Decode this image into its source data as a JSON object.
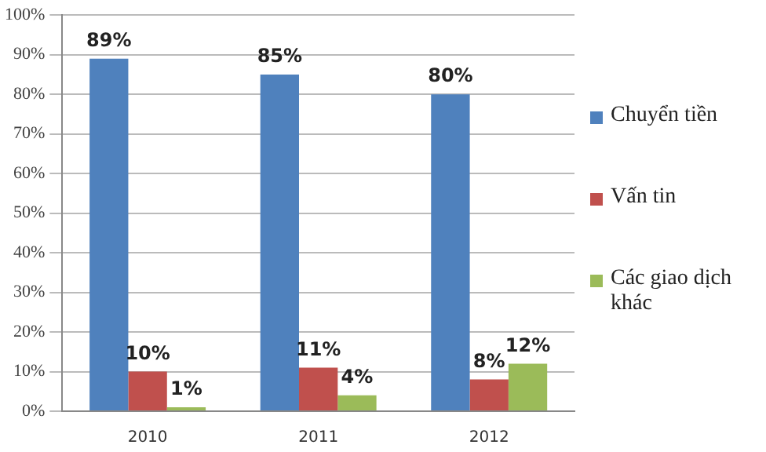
{
  "chart_data": {
    "type": "bar",
    "categories": [
      "2010",
      "2011",
      "2012"
    ],
    "series": [
      {
        "name": "Chuyển tiền",
        "color": "#4f81bd",
        "values": [
          89,
          85,
          80
        ],
        "value_labels": [
          "89%",
          "85%",
          "80%"
        ]
      },
      {
        "name": "Vấn tin",
        "color": "#c0504d",
        "values": [
          10,
          11,
          8
        ],
        "value_labels": [
          "10%",
          "11%",
          "8%"
        ]
      },
      {
        "name": "Các giao dịch khác",
        "color": "#9bbb59",
        "values": [
          1,
          4,
          12
        ],
        "value_labels": [
          "1%",
          "4%",
          "12%"
        ]
      }
    ],
    "ylim": [
      0,
      100
    ],
    "yticks": [
      {
        "value": 0,
        "label": "0%"
      },
      {
        "value": 10,
        "label": "10%"
      },
      {
        "value": 20,
        "label": "20%"
      },
      {
        "value": 30,
        "label": "30%"
      },
      {
        "value": 40,
        "label": "40%"
      },
      {
        "value": 50,
        "label": "50%"
      },
      {
        "value": 60,
        "label": "60%"
      },
      {
        "value": 70,
        "label": "70%"
      },
      {
        "value": 80,
        "label": "80%"
      },
      {
        "value": 90,
        "label": "90%"
      },
      {
        "value": 100,
        "label": "100%"
      }
    ],
    "grid": "y",
    "legend": "right"
  }
}
